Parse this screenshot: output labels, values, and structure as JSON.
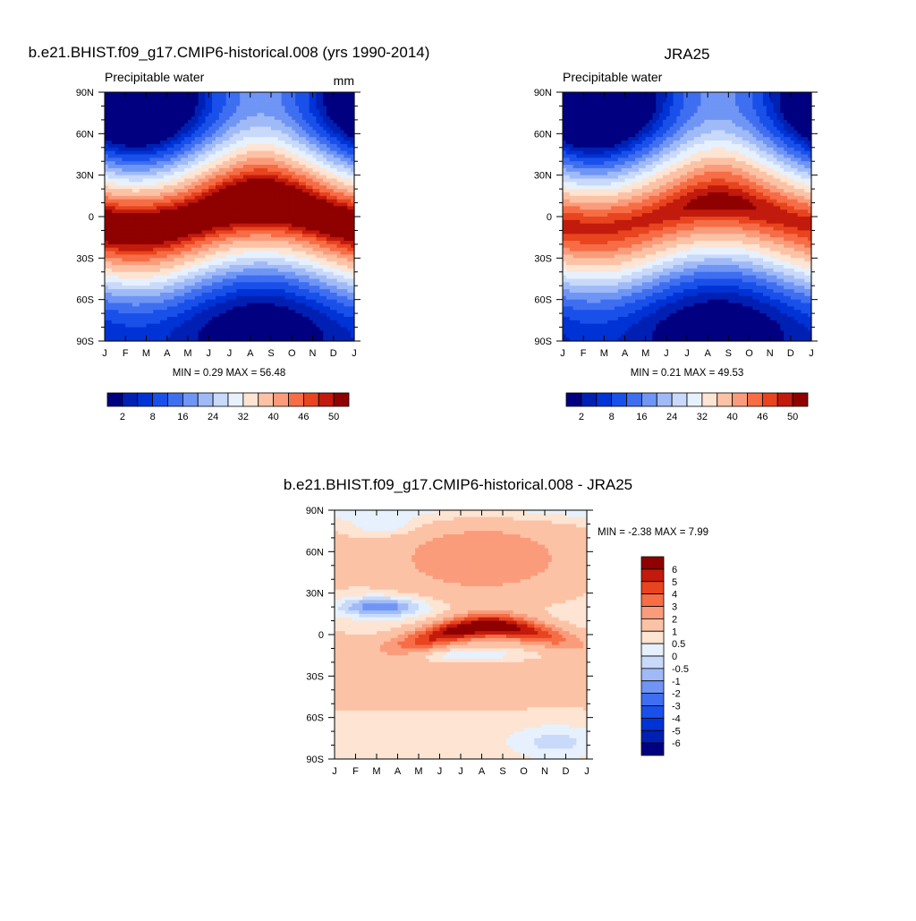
{
  "chart_data": [
    {
      "type": "heatmap",
      "title": "b.e21.BHIST.f09_g17.CMIP6-historical.008 (yrs 1990-2014)",
      "subtitle": "Precipitable water",
      "units": "mm",
      "stats": "MIN =   0.29 MAX =  56.48",
      "x_tick_labels": [
        "J",
        "F",
        "M",
        "A",
        "M",
        "J",
        "J",
        "A",
        "S",
        "O",
        "N",
        "D",
        "J"
      ],
      "y_tick_labels": [
        "90N",
        "60N",
        "30N",
        "0",
        "30S",
        "60S",
        "90S"
      ],
      "ylim": [
        -90,
        90
      ],
      "field": {
        "equator_max": 52,
        "itcz_amp": 13,
        "polar_low": 2,
        "seasonal_peak_month": 7.5
      },
      "colorbar": {
        "orientation": "horizontal",
        "levels": [
          2,
          5,
          8,
          12,
          16,
          20,
          24,
          28,
          32,
          36,
          40,
          43,
          46,
          48,
          50
        ],
        "labels": [
          "2",
          "8",
          "16",
          "24",
          "32",
          "40",
          "46",
          "50"
        ],
        "colors": [
          "#000080",
          "#0020b4",
          "#0033d6",
          "#1a50ea",
          "#3f6ff0",
          "#6f95f5",
          "#9fbaf7",
          "#c8d9fa",
          "#e6f1fd",
          "#fde4d3",
          "#fcc2a5",
          "#fa9c7b",
          "#f66d46",
          "#e8441f",
          "#c21a0c",
          "#8f0000"
        ]
      }
    },
    {
      "type": "heatmap",
      "title": "JRA25",
      "subtitle": "Precipitable water",
      "units": "",
      "stats": "MIN =   0.21 MAX =  49.53",
      "x_tick_labels": [
        "J",
        "F",
        "M",
        "A",
        "M",
        "J",
        "J",
        "A",
        "S",
        "O",
        "N",
        "D",
        "J"
      ],
      "y_tick_labels": [
        "90N",
        "60N",
        "30N",
        "0",
        "30S",
        "60S",
        "90S"
      ],
      "ylim": [
        -90,
        90
      ],
      "field": {
        "equator_max": 47,
        "itcz_amp": 11,
        "polar_low": 1.5,
        "seasonal_peak_month": 7.5
      },
      "colorbar": {
        "orientation": "horizontal",
        "levels": [
          2,
          5,
          8,
          12,
          16,
          20,
          24,
          28,
          32,
          36,
          40,
          43,
          46,
          48,
          50
        ],
        "labels": [
          "2",
          "8",
          "16",
          "24",
          "32",
          "40",
          "46",
          "50"
        ],
        "colors": [
          "#000080",
          "#0020b4",
          "#0033d6",
          "#1a50ea",
          "#3f6ff0",
          "#6f95f5",
          "#9fbaf7",
          "#c8d9fa",
          "#e6f1fd",
          "#fde4d3",
          "#fcc2a5",
          "#fa9c7b",
          "#f66d46",
          "#e8441f",
          "#c21a0c",
          "#8f0000"
        ]
      }
    },
    {
      "type": "heatmap",
      "title": "b.e21.BHIST.f09_g17.CMIP6-historical.008 - JRA25",
      "subtitle": "",
      "units": "",
      "stats": "MIN =  -2.38 MAX =   7.99",
      "x_tick_labels": [
        "J",
        "F",
        "M",
        "A",
        "M",
        "J",
        "J",
        "A",
        "S",
        "O",
        "N",
        "D",
        "J"
      ],
      "y_tick_labels": [
        "90N",
        "60N",
        "30N",
        "0",
        "30S",
        "60S",
        "90S"
      ],
      "ylim": [
        -90,
        90
      ],
      "colorbar": {
        "orientation": "vertical",
        "levels": [
          -6,
          -5,
          -4,
          -3,
          -2,
          -1,
          -0.5,
          0,
          0.5,
          1,
          2,
          3,
          4,
          5,
          6
        ],
        "labels": [
          "6",
          "5",
          "4",
          "3",
          "2",
          "1",
          "0.5",
          "0",
          "-0.5",
          "-1",
          "-2",
          "-3",
          "-4",
          "-5",
          "-6"
        ],
        "colors": [
          "#000080",
          "#0020b4",
          "#0033d6",
          "#1a50ea",
          "#3f6ff0",
          "#6f95f5",
          "#9fbaf7",
          "#c8d9fa",
          "#e6f1fd",
          "#fde4d3",
          "#fcc2a5",
          "#fa9c7b",
          "#f66d46",
          "#e8441f",
          "#c21a0c",
          "#8f0000"
        ]
      }
    }
  ]
}
